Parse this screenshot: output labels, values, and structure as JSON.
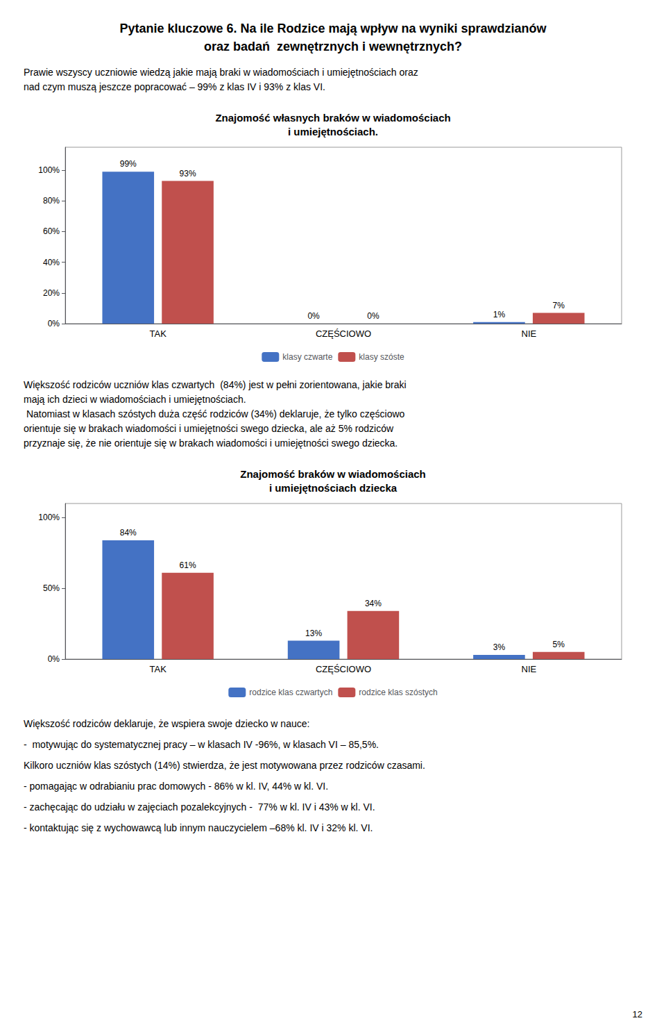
{
  "title": "Pytanie kluczowe 6. Na ile Rodzice mają wpływ na wyniki sprawdzianów\noraz badań  zewnętrznych i wewnętrznych?",
  "annotations": [
    "Prawie wszyscy uczniowie wiedzą jakie mają braki w wiadomościach i umiejętnościach oraz",
    "nad czym muszą jeszcze popracować – 99% z klas IV i 93% z klas VI.",
    "Większość rodziców uczniów klas czwartych  (84%) jest w pełni zorientowana, jakie braki",
    "mają ich dzieci w wiadomościach i umiejętnościach.",
    " Natomiast w klasach szóstych duża część rodziców (34%) deklaruje, że tylko częściowo",
    "orientuje się w brakach wiadomości i umiejętności swego dziecka, ale aż 5% rodziców",
    "przyznaje się, że nie orientuje się w brakach wiadomości i umiejętności swego dziecka.",
    "Większość rodziców deklaruje, że wspiera swoje dziecko w nauce:",
    "-  motywując do systematycznej pracy – w klasach IV -96%, w klasach VI – 85,5%.",
    "Kilkoro uczniów klas szóstych (14%) stwierdza, że jest motywowana przez rodziców czasami.",
    "- pomagając w odrabianiu prac domowych - 86% w kl. IV, 44% w kl. VI.",
    "- zachęcając do udziału w zajęciach pozalekcyjnych -  77% w kl. IV i 43% w kl. VI.",
    "- kontaktując się z wychowawcą lub innym nauczycielem –68% kl. IV i 32% kl. VI.",
    "12"
  ],
  "chart_data": [
    {
      "type": "bar",
      "title": "Znajomość własnych braków w wiadomościach\ni umiejętnościach.",
      "categories": [
        "TAK",
        "CZĘŚCIOWO",
        "NIE"
      ],
      "series": [
        {
          "name": "klasy czwarte",
          "color": "#4472C4",
          "values": [
            99,
            0,
            1
          ],
          "value_labels": [
            "99%",
            "0%",
            "1%"
          ]
        },
        {
          "name": "klasy szóste",
          "color": "#C0504D",
          "values": [
            93,
            0,
            7
          ],
          "value_labels": [
            "93%",
            "0%",
            "7%"
          ]
        }
      ],
      "ylim": [
        0,
        115
      ],
      "yticks": [
        {
          "value": 0,
          "label": "0%"
        },
        {
          "value": 20,
          "label": "20%"
        },
        {
          "value": 40,
          "label": "40%"
        },
        {
          "value": 60,
          "label": "60%"
        },
        {
          "value": 80,
          "label": "80%"
        },
        {
          "value": 100,
          "label": "100%"
        }
      ],
      "grid": false,
      "legend": "bottom",
      "data_labels": true
    },
    {
      "type": "bar",
      "title": "Znajomość braków w wiadomościach\ni umiejętnościach dziecka",
      "categories": [
        "TAK",
        "CZĘŚCIOWO",
        "NIE"
      ],
      "series": [
        {
          "name": "rodzice klas czwartych",
          "color": "#4472C4",
          "values": [
            84,
            13,
            3
          ],
          "value_labels": [
            "84%",
            "13%",
            "3%"
          ]
        },
        {
          "name": "rodzice klas szóstych",
          "color": "#C0504D",
          "values": [
            61,
            34,
            5
          ],
          "value_labels": [
            "61%",
            "34%",
            "5%"
          ]
        }
      ],
      "ylim": [
        0,
        110
      ],
      "yticks": [
        {
          "value": 0,
          "label": "0%"
        },
        {
          "value": 50,
          "label": "50%"
        },
        {
          "value": 100,
          "label": "100%"
        }
      ],
      "grid": false,
      "legend": "bottom",
      "data_labels": true
    }
  ]
}
